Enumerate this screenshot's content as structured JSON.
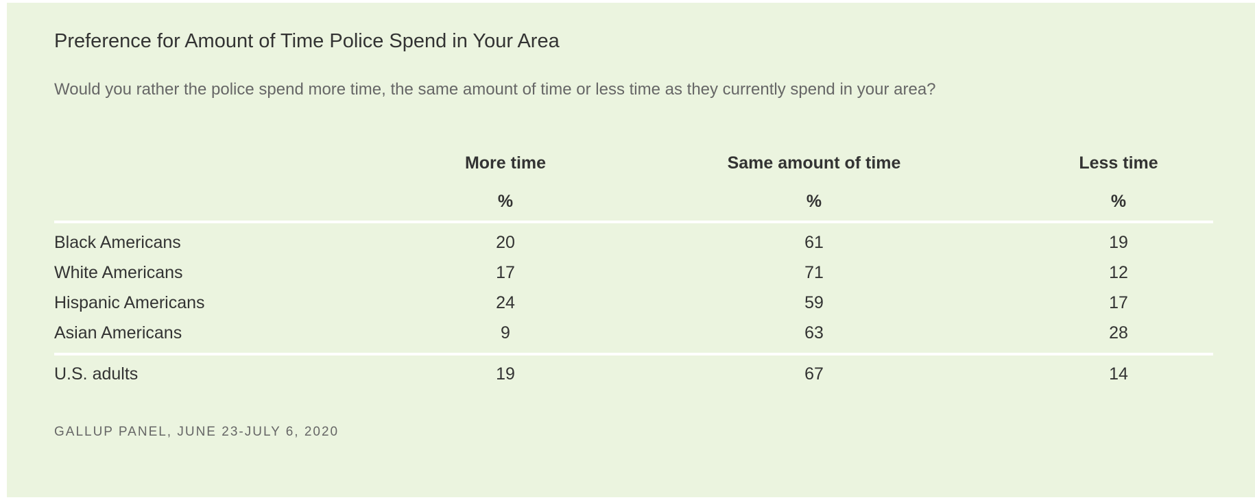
{
  "chart_data": {
    "type": "table",
    "title": "Preference for Amount of Time Police Spend in Your Area",
    "subtitle": "Would you rather the police spend more time, the same amount of time or less time as they currently spend in your area?",
    "columns": [
      {
        "label": "More time",
        "unit": "%"
      },
      {
        "label": "Same amount of time",
        "unit": "%"
      },
      {
        "label": "Less time",
        "unit": "%"
      }
    ],
    "rows": [
      {
        "label": "Black Americans",
        "values": [
          "20",
          "61",
          "19"
        ]
      },
      {
        "label": "White Americans",
        "values": [
          "17",
          "71",
          "12"
        ]
      },
      {
        "label": "Hispanic Americans",
        "values": [
          "24",
          "59",
          "17"
        ]
      },
      {
        "label": "Asian Americans",
        "values": [
          "9",
          "63",
          "28"
        ]
      }
    ],
    "total_row": {
      "label": "U.S. adults",
      "values": [
        "19",
        "67",
        "14"
      ]
    },
    "source": "GALLUP PANEL, JUNE 23-JULY 6, 2020"
  },
  "colors": {
    "background": "#ebf4df",
    "text": "#333333",
    "rule": "#ffffff"
  }
}
